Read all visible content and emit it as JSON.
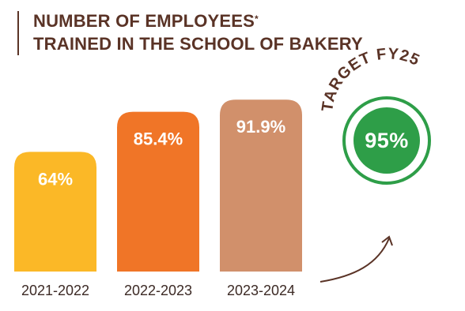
{
  "header": {
    "title_line1": "NUMBER OF EMPLOYEES",
    "title_asterisk": "*",
    "title_line2": "TRAINED IN THE SCHOOL OF BAKERY"
  },
  "target": {
    "label": "TARGET FY25",
    "value": "95%",
    "ring_color": "#2e9e48"
  },
  "chart_data": {
    "type": "bar",
    "title": "NUMBER OF EMPLOYEES* TRAINED IN THE SCHOOL OF BAKERY",
    "categories": [
      "2021-2022",
      "2022-2023",
      "2023-2024"
    ],
    "values": [
      64,
      85.4,
      91.9
    ],
    "value_labels": [
      "64%",
      "85.4%",
      "91.9%"
    ],
    "colors": [
      "#fbb827",
      "#f07527",
      "#d1906b"
    ],
    "ylim": [
      0,
      100
    ],
    "grid": false,
    "xlabel": "",
    "ylabel": ""
  }
}
